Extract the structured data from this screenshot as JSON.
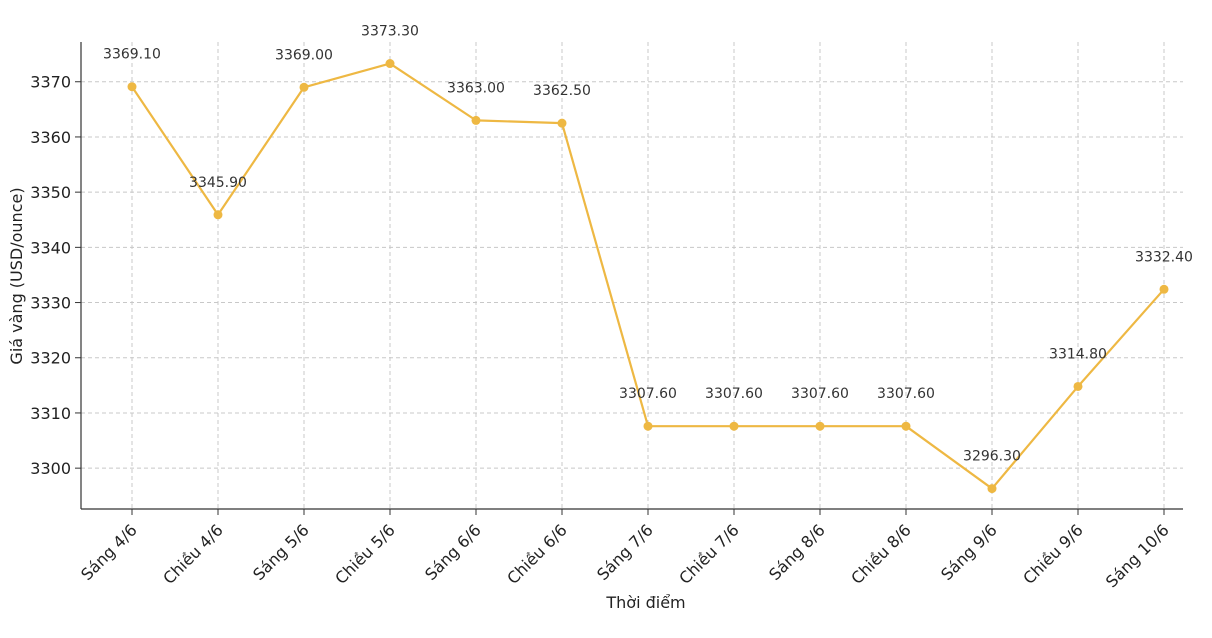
{
  "colors": {
    "series": "#eeb843",
    "background": "#ffffff"
  },
  "chart_data": {
    "type": "line",
    "title": "",
    "xlabel": "Thời điểm",
    "ylabel": "Giá vàng (USD/ounce)",
    "categories": [
      "Sáng 4/6",
      "Chiều 4/6",
      "Sáng 5/6",
      "Chiều 5/6",
      "Sáng 6/6",
      "Chiều 6/6",
      "Sáng 7/6",
      "Chiều 7/6",
      "Sáng 8/6",
      "Chiều 8/6",
      "Sáng 9/6",
      "Chiều 9/6",
      "Sáng 10/6"
    ],
    "series": [
      {
        "name": "Giá vàng",
        "values": [
          3369.1,
          3345.9,
          3369.0,
          3373.3,
          3363.0,
          3362.5,
          3307.6,
          3307.6,
          3307.6,
          3307.6,
          3296.3,
          3314.8,
          3332.4
        ]
      }
    ],
    "data_labels": [
      "3369.10",
      "3345.90",
      "3369.00",
      "3373.30",
      "3363.00",
      "3362.50",
      "3307.60",
      "3307.60",
      "3307.60",
      "3307.60",
      "3296.30",
      "3314.80",
      "3332.40"
    ],
    "ylim": [
      3292.6,
      3377.2
    ],
    "yticks": [
      3300,
      3310,
      3320,
      3330,
      3340,
      3350,
      3360,
      3370
    ],
    "grid": true,
    "legend": "none"
  }
}
